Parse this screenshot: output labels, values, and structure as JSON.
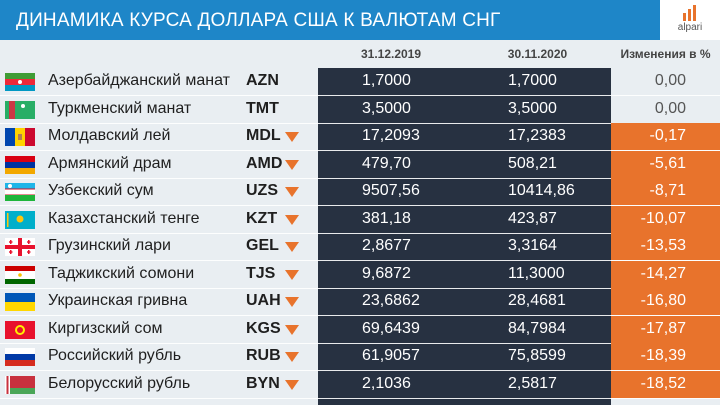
{
  "header": {
    "title": "ДИНАМИКА КУРСА ДОЛЛАРА США К ВАЛЮТАМ СНГ",
    "logo_text": "alpari"
  },
  "columns": {
    "date1": "31.12.2019",
    "date2": "30.11.2020",
    "change": "Изменения в %"
  },
  "rows": [
    {
      "name": "Азербайджанский манат",
      "code": "AZN",
      "v1": "1,7000",
      "v2": "1,7000",
      "change": "0,00",
      "down": false,
      "flag": "azerbaijan-flag-icon"
    },
    {
      "name": "Туркменский манат",
      "code": "TMT",
      "v1": "3,5000",
      "v2": "3,5000",
      "change": "0,00",
      "down": false,
      "flag": "turkmenistan-flag-icon"
    },
    {
      "name": "Молдавский лей",
      "code": "MDL",
      "v1": "17,2093",
      "v2": "17,2383",
      "change": "-0,17",
      "down": true,
      "flag": "moldova-flag-icon"
    },
    {
      "name": "Армянский драм",
      "code": "AMD",
      "v1": "479,70",
      "v2": "508,21",
      "change": "-5,61",
      "down": true,
      "flag": "armenia-flag-icon"
    },
    {
      "name": "Узбекский сум",
      "code": "UZS",
      "v1": "9507,56",
      "v2": "10414,86",
      "change": "-8,71",
      "down": true,
      "flag": "uzbekistan-flag-icon"
    },
    {
      "name": "Казахстанский тенге",
      "code": "KZT",
      "v1": "381,18",
      "v2": "423,87",
      "change": "-10,07",
      "down": true,
      "flag": "kazakhstan-flag-icon"
    },
    {
      "name": "Грузинский лари",
      "code": "GEL",
      "v1": "2,8677",
      "v2": "3,3164",
      "change": "-13,53",
      "down": true,
      "flag": "georgia-flag-icon"
    },
    {
      "name": "Таджикский сомони",
      "code": "TJS",
      "v1": "9,6872",
      "v2": "11,3000",
      "change": "-14,27",
      "down": true,
      "flag": "tajikistan-flag-icon"
    },
    {
      "name": "Украинская гривна",
      "code": "UAH",
      "v1": "23,6862",
      "v2": "28,4681",
      "change": "-16,80",
      "down": true,
      "flag": "ukraine-flag-icon"
    },
    {
      "name": "Киргизский сом",
      "code": "KGS",
      "v1": "69,6439",
      "v2": "84,7984",
      "change": "-17,87",
      "down": true,
      "flag": "kyrgyzstan-flag-icon"
    },
    {
      "name": "Российский рубль",
      "code": "RUB",
      "v1": "61,9057",
      "v2": "75,8599",
      "change": "-18,39",
      "down": true,
      "flag": "russia-flag-icon"
    },
    {
      "name": "Белорусский рубль",
      "code": "BYN",
      "v1": "2,1036",
      "v2": "2,5817",
      "change": "-18,52",
      "down": true,
      "flag": "belarus-flag-icon"
    }
  ],
  "colors": {
    "title_bar": "#1e86c8",
    "dark_column": "#273141",
    "negative": "#e8732c",
    "background": "#e9eef2"
  }
}
